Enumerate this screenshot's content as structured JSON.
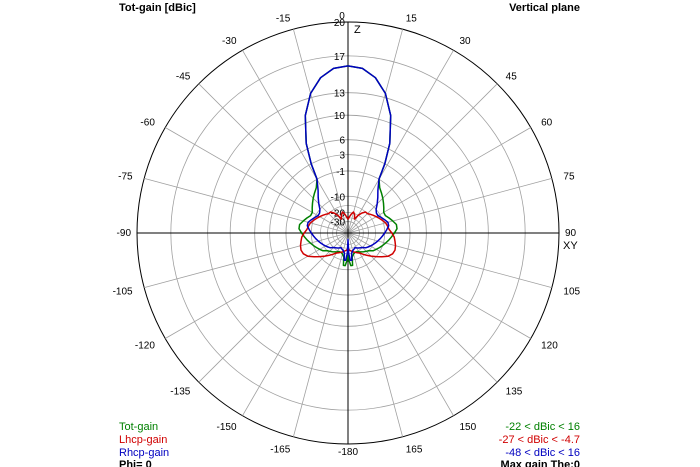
{
  "header": {
    "title_left": "Tot-gain [dBic]",
    "title_right": "Vertical plane"
  },
  "axes": {
    "z_label": "Z",
    "xy_label": "XY",
    "angle_labels": [
      "0",
      "15",
      "30",
      "45",
      "60",
      "75",
      "90",
      "105",
      "120",
      "135",
      "150",
      "165",
      "-180",
      "-165",
      "-150",
      "-135",
      "-120",
      "-105",
      "-90",
      "-75",
      "-60",
      "-45",
      "-30",
      "-15"
    ],
    "radial_labels": [
      "20",
      "17",
      "13",
      "10",
      "6",
      "3",
      "-1",
      "-10",
      "-20",
      "-30"
    ]
  },
  "legend": {
    "tot_label": "Tot-gain",
    "lhcp_label": "Lhcp-gain",
    "rhcp_label": "Rhcp-gain",
    "phi_label": "Phi= 0",
    "tot_range": "-22 < dBic < 16",
    "lhcp_range": "-27 < dBic < -4.7",
    "rhcp_range": "-48 < dBic < 16",
    "max_gain": "Max gain The:0"
  },
  "colors": {
    "tot": "#008000",
    "lhcp": "#d00000",
    "rhcp": "#0000c0",
    "grid": "#a0a0a0",
    "axis": "#000000"
  },
  "chart_data": {
    "type": "polar",
    "title": "Tot-gain [dBic]",
    "subtitle": "Vertical plane",
    "angle_unit": "deg",
    "radial_ticks_dBic": [
      20,
      17,
      13,
      10,
      6,
      3,
      -1,
      -10,
      -20,
      -30
    ],
    "series": [
      {
        "name": "Tot-gain",
        "theta": [
          0,
          5,
          10,
          15,
          20,
          25,
          28,
          30,
          35,
          40,
          45,
          50,
          55,
          60,
          65,
          70,
          75,
          80,
          85,
          90,
          95,
          100,
          105,
          110,
          115,
          120,
          125,
          130,
          135,
          140,
          145,
          150,
          155,
          160,
          165,
          170,
          172,
          175,
          178,
          180
        ],
        "gain": [
          16,
          15.8,
          15,
          13.5,
          11,
          7,
          3,
          -1,
          -3,
          -4,
          -5,
          -6,
          -7,
          -8,
          -8,
          -7,
          -6,
          -5,
          -5,
          -6,
          -7,
          -8,
          -9,
          -10,
          -11,
          -12,
          -13,
          -15,
          -16,
          -17,
          -18,
          -19,
          -20,
          -20,
          -19,
          -17,
          -12,
          -12,
          -15,
          -22
        ]
      },
      {
        "name": "Lhcp-gain",
        "theta": [
          0,
          5,
          10,
          15,
          20,
          25,
          30,
          35,
          40,
          45,
          50,
          55,
          60,
          65,
          70,
          75,
          80,
          85,
          90,
          95,
          100,
          105,
          110,
          115,
          120,
          125,
          130,
          135,
          140,
          145,
          150,
          155,
          160,
          165,
          170,
          175,
          180
        ],
        "gain": [
          -27,
          -24,
          -21,
          -19,
          -21,
          -25,
          -20,
          -17,
          -15,
          -15,
          -14,
          -13,
          -12,
          -11,
          -10,
          -9,
          -8.5,
          -8,
          -7,
          -6,
          -5.5,
          -5,
          -4.7,
          -5,
          -6,
          -8,
          -10,
          -12,
          -14,
          -16,
          -18,
          -19,
          -20,
          -21,
          -22,
          -23,
          -25
        ]
      },
      {
        "name": "Rhcp-gain",
        "theta": [
          0,
          5,
          10,
          15,
          20,
          25,
          28,
          30,
          35,
          40,
          45,
          50,
          55,
          60,
          65,
          70,
          75,
          80,
          85,
          90,
          95,
          100,
          105,
          110,
          115,
          120,
          125,
          130,
          135,
          140,
          145,
          150,
          155,
          160,
          165,
          170,
          172,
          175,
          178,
          180
        ],
        "gain": [
          16,
          15.8,
          15,
          13.5,
          11,
          7,
          3,
          -1,
          -4,
          -6,
          -8,
          -10,
          -11,
          -11,
          -10,
          -9,
          -8,
          -8,
          -9,
          -10,
          -11,
          -12,
          -13,
          -14,
          -15,
          -16,
          -17,
          -18,
          -20,
          -21,
          -22,
          -23,
          -24,
          -23,
          -22,
          -20,
          -15,
          -15,
          -20,
          -48
        ]
      }
    ]
  }
}
